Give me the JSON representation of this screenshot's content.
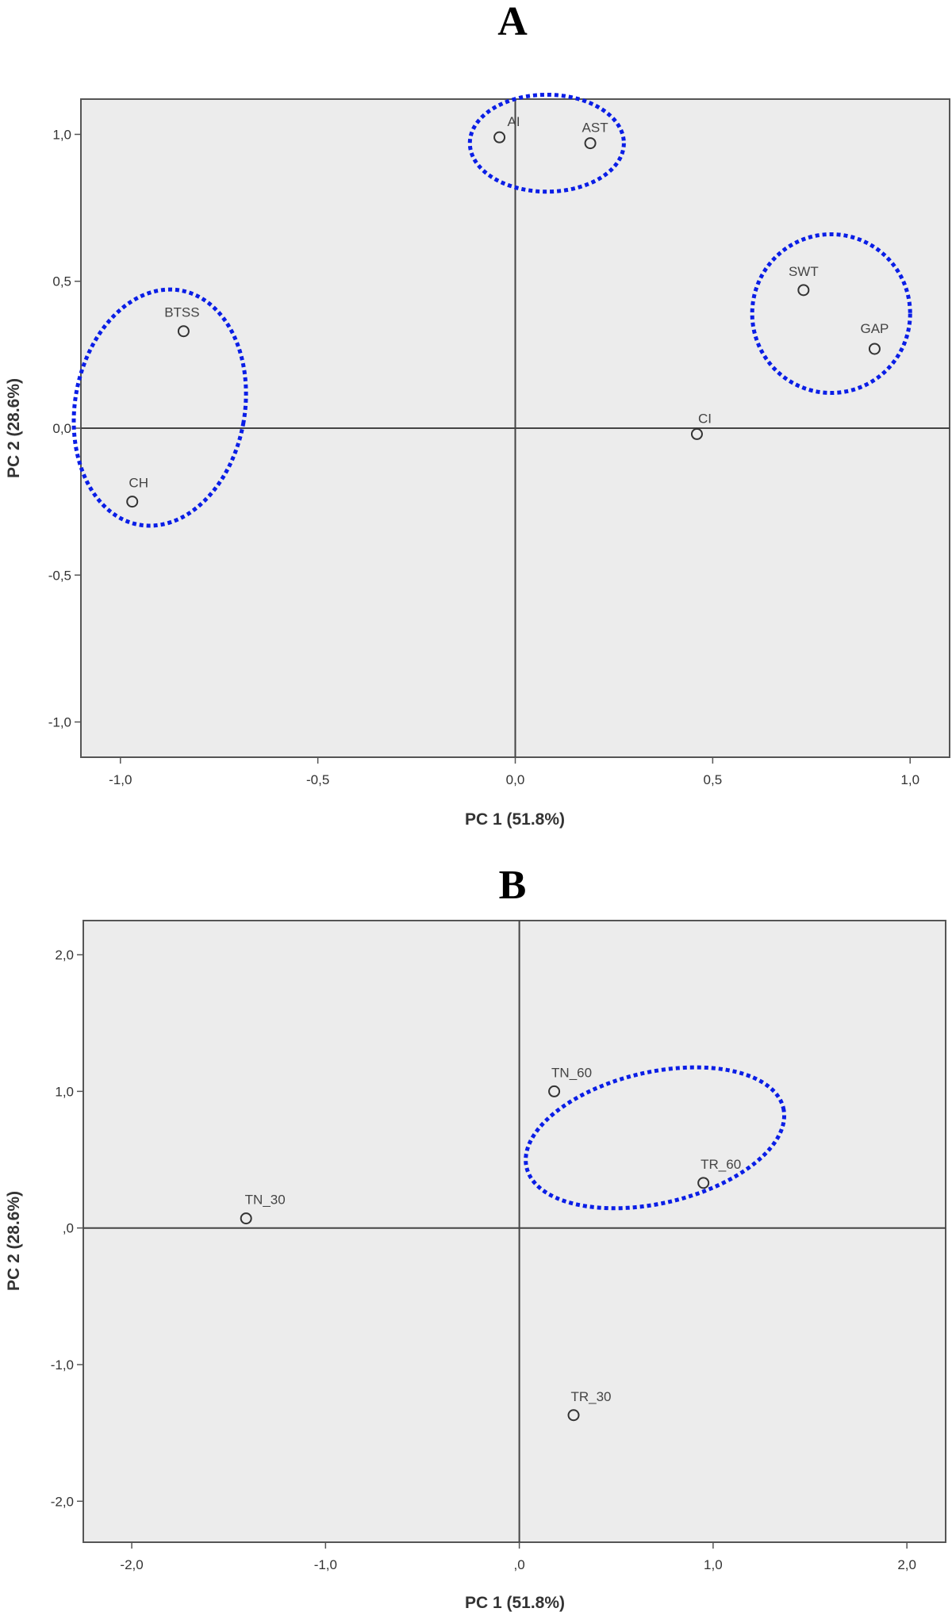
{
  "chart_data": [
    {
      "type": "scatter",
      "panel_label": "A",
      "xlabel": "PC 1 (51.8%)",
      "ylabel": "PC 2 (28.6%)",
      "xlim": [
        -1.1,
        1.1
      ],
      "ylim": [
        -1.12,
        1.12
      ],
      "xticks": [
        -1.0,
        -0.5,
        0.0,
        0.5,
        1.0
      ],
      "xtick_labels": [
        "-1,0",
        "-0,5",
        "0,0",
        "0,5",
        "1,0"
      ],
      "yticks": [
        1.0,
        0.5,
        0.0,
        -0.5,
        -1.0
      ],
      "ytick_labels": [
        "1,0",
        "0,5",
        "0,0",
        "-0,5",
        "-1,0"
      ],
      "reference_lines": {
        "x": 0,
        "y": 0
      },
      "points": [
        {
          "label": "AI",
          "x": -0.04,
          "y": 0.99
        },
        {
          "label": "AST",
          "x": 0.19,
          "y": 0.97
        },
        {
          "label": "BTSS",
          "x": -0.84,
          "y": 0.33
        },
        {
          "label": "CH",
          "x": -0.97,
          "y": -0.25
        },
        {
          "label": "CI",
          "x": 0.46,
          "y": -0.02
        },
        {
          "label": "SWT",
          "x": 0.73,
          "y": 0.47
        },
        {
          "label": "GAP",
          "x": 0.91,
          "y": 0.27
        }
      ],
      "groups": [
        {
          "members": [
            "AI",
            "AST"
          ],
          "color": "#0a1ee6"
        },
        {
          "members": [
            "BTSS",
            "CH"
          ],
          "color": "#0a1ee6"
        },
        {
          "members": [
            "SWT",
            "GAP"
          ],
          "color": "#0a1ee6"
        }
      ],
      "background": "#ececec"
    },
    {
      "type": "scatter",
      "panel_label": "B",
      "xlabel": "PC 1 (51.8%)",
      "ylabel": "PC 2 (28.6%)",
      "xlim": [
        -2.25,
        2.2
      ],
      "ylim": [
        -2.3,
        2.25
      ],
      "xticks": [
        -2.0,
        -1.0,
        0.0,
        1.0,
        2.0
      ],
      "xtick_labels": [
        "-2,0",
        "-1,0",
        ",0",
        "1,0",
        "2,0"
      ],
      "yticks": [
        2.0,
        1.0,
        0.0,
        -1.0,
        -2.0
      ],
      "ytick_labels": [
        "2,0",
        "1,0",
        ",0",
        "-1,0",
        "-2,0"
      ],
      "reference_lines": {
        "x": 0,
        "y": 0
      },
      "points": [
        {
          "label": "TN_60",
          "x": 0.18,
          "y": 1.0
        },
        {
          "label": "TR_60",
          "x": 0.95,
          "y": 0.33
        },
        {
          "label": "TN_30",
          "x": -1.41,
          "y": 0.07
        },
        {
          "label": "TR_30",
          "x": 0.28,
          "y": -1.37
        }
      ],
      "groups": [
        {
          "members": [
            "TN_60",
            "TR_60"
          ],
          "color": "#0a1ee6"
        }
      ],
      "background": "#ececec"
    }
  ]
}
